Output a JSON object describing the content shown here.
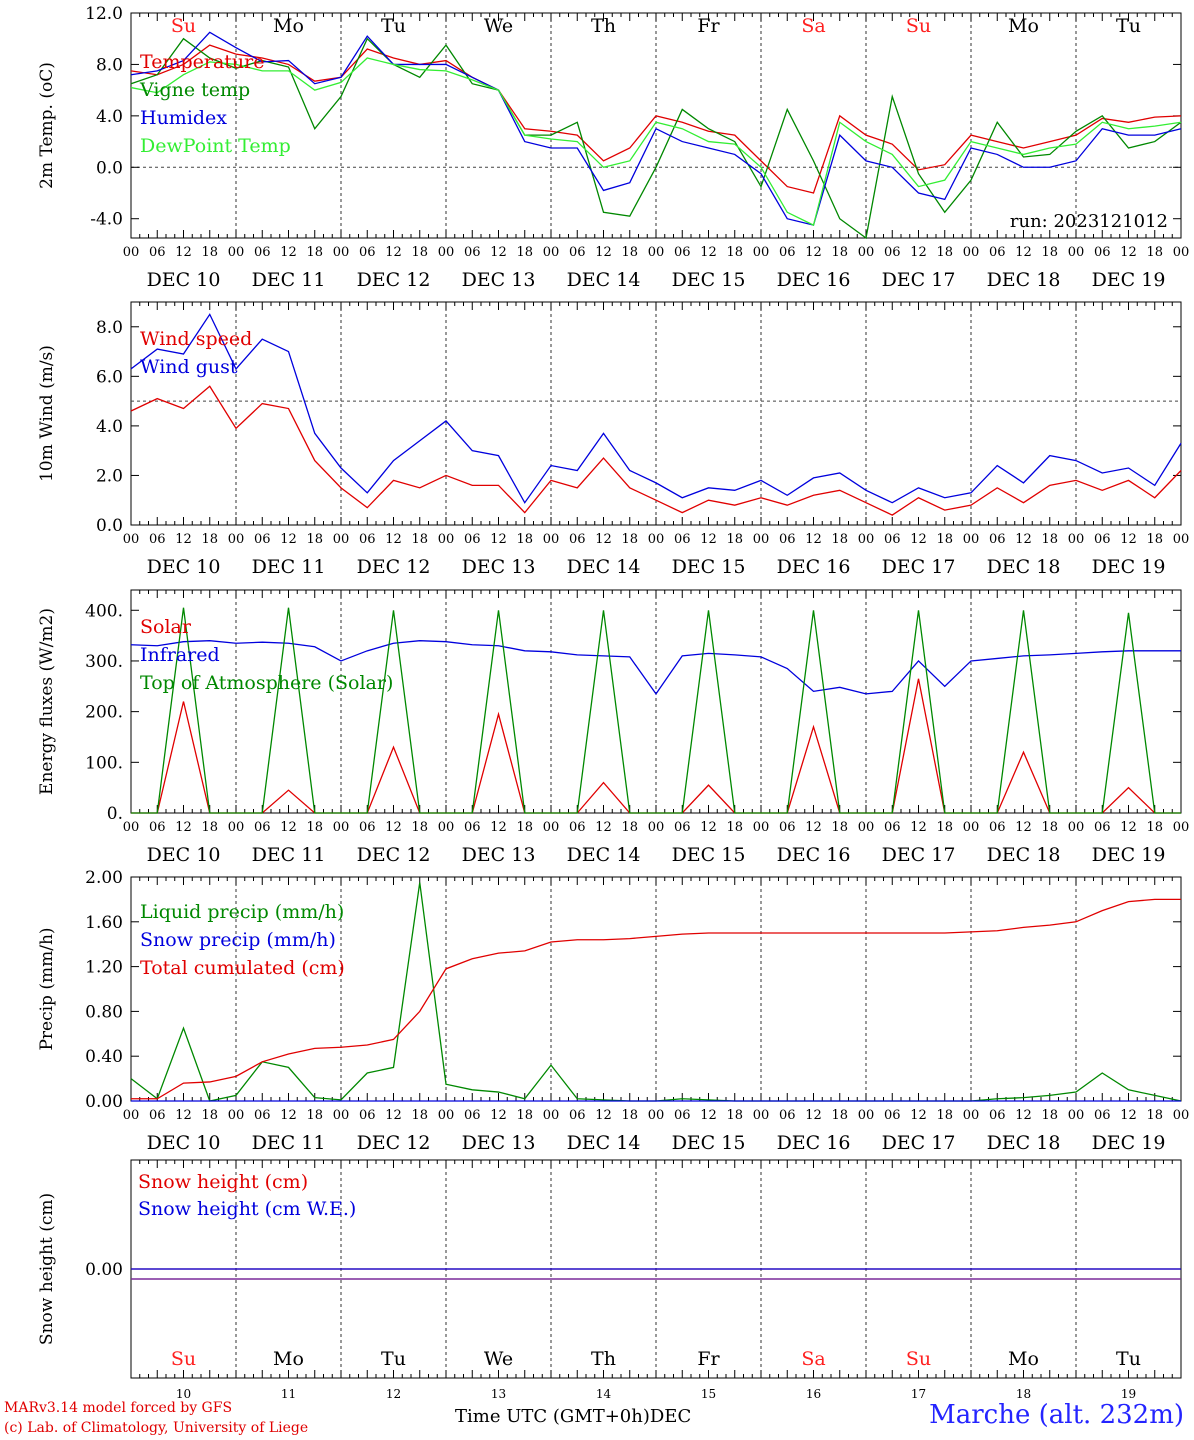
{
  "run_label": "run: 2023121012",
  "day_dates": [
    "DEC 10",
    "DEC 11",
    "DEC 12",
    "DEC 13",
    "DEC 14",
    "DEC 15",
    "DEC 16",
    "DEC 17",
    "DEC 18",
    "DEC 19"
  ],
  "day_names": [
    "Su",
    "Mo",
    "Tu",
    "We",
    "Th",
    "Fr",
    "Sa",
    "Su",
    "Mo",
    "Tu"
  ],
  "day_numbers": [
    "10",
    "11",
    "12",
    "13",
    "14",
    "15",
    "16",
    "17",
    "18",
    "19"
  ],
  "hour_ticks": [
    "00",
    "06",
    "12",
    "18"
  ],
  "weekend_color": "#ff2020",
  "footer": {
    "model": "MARv3.14 model forced by GFS",
    "lab": "(c) Lab. of Climatology, University of Liege",
    "xlabel": "Time UTC (GMT+0h)",
    "month": "DEC",
    "station": "Marche (alt. 232m)"
  },
  "chart_data": [
    {
      "type": "line",
      "ylabel": "2m Temp. (oC)",
      "ylim": [
        -5.5,
        12.0
      ],
      "yticks": [
        "-4.0",
        "0.0",
        "4.0",
        "8.0",
        "12.0"
      ],
      "ytick_values": [
        -4,
        0,
        4,
        8,
        12
      ],
      "ref_line": 0,
      "x_hours": [
        0,
        6,
        12,
        18,
        24,
        30,
        36,
        42,
        48,
        54,
        60,
        66,
        72,
        78,
        84,
        90,
        96,
        102,
        108,
        114,
        120,
        126,
        132,
        138,
        144,
        150,
        156,
        162,
        168,
        174,
        180,
        186,
        192,
        198,
        204,
        210,
        216,
        222,
        228,
        234,
        240
      ],
      "series": [
        {
          "name": "Temperature",
          "color": "#e00000",
          "values": [
            7.5,
            7.2,
            8.0,
            9.5,
            8.8,
            8.5,
            8.0,
            6.7,
            7.0,
            9.2,
            8.5,
            8.0,
            8.3,
            7.0,
            6.0,
            3.0,
            2.8,
            2.5,
            0.5,
            1.5,
            4.0,
            3.5,
            2.8,
            2.5,
            0.5,
            -1.5,
            -2.0,
            4.0,
            2.5,
            1.8,
            -0.2,
            0.2,
            2.5,
            2.0,
            1.5,
            2.0,
            2.5,
            3.8,
            3.5,
            3.9,
            4.0
          ]
        },
        {
          "name": "Vigne temp",
          "color": "#008800",
          "values": [
            6.5,
            7.2,
            10.0,
            8.5,
            7.7,
            8.3,
            7.8,
            3.0,
            5.5,
            10.0,
            8.0,
            7.0,
            9.5,
            6.5,
            6.0,
            2.5,
            2.5,
            3.5,
            -3.5,
            -3.8,
            0.0,
            4.5,
            3.0,
            2.0,
            -1.5,
            4.5,
            0.5,
            -4.0,
            -5.5,
            5.5,
            -0.5,
            -3.5,
            -1.0,
            3.5,
            0.8,
            1.0,
            2.8,
            4.0,
            1.5,
            2.0,
            3.5
          ]
        },
        {
          "name": "Humidex",
          "color": "#0000dd",
          "values": [
            7.2,
            7.5,
            8.3,
            10.5,
            9.3,
            8.2,
            8.3,
            6.5,
            7.0,
            10.2,
            8.0,
            8.0,
            8.0,
            7.0,
            6.0,
            2.0,
            1.5,
            1.5,
            -1.8,
            -1.2,
            3.0,
            2.0,
            1.5,
            1.0,
            -0.5,
            -4.0,
            -4.5,
            2.5,
            0.5,
            0.0,
            -2.0,
            -2.5,
            1.5,
            1.0,
            0.0,
            0.0,
            0.5,
            3.0,
            2.5,
            2.5,
            3.0
          ]
        },
        {
          "name": "DewPoint Temp",
          "color": "#33ee33",
          "values": [
            6.2,
            5.8,
            7.2,
            8.2,
            8.0,
            7.5,
            7.5,
            6.0,
            6.6,
            8.5,
            8.0,
            7.6,
            7.5,
            6.8,
            6.0,
            2.5,
            2.2,
            2.0,
            0.0,
            0.5,
            3.5,
            3.0,
            2.0,
            1.8,
            0.0,
            -3.5,
            -4.5,
            3.5,
            2.0,
            1.0,
            -1.5,
            -1.0,
            2.0,
            1.5,
            1.0,
            1.5,
            1.8,
            3.5,
            3.0,
            3.2,
            3.5
          ]
        }
      ]
    },
    {
      "type": "line",
      "ylabel": "10m Wind (m/s)",
      "ylim": [
        0,
        9.0
      ],
      "yticks": [
        "0.0",
        "2.0",
        "4.0",
        "6.0",
        "8.0"
      ],
      "ytick_values": [
        0,
        2,
        4,
        6,
        8
      ],
      "ref_line": 5,
      "x_hours": [
        0,
        6,
        12,
        18,
        24,
        30,
        36,
        42,
        48,
        54,
        60,
        66,
        72,
        78,
        84,
        90,
        96,
        102,
        108,
        114,
        120,
        126,
        132,
        138,
        144,
        150,
        156,
        162,
        168,
        174,
        180,
        186,
        192,
        198,
        204,
        210,
        216,
        222,
        228,
        234,
        240
      ],
      "series": [
        {
          "name": "Wind speed",
          "color": "#e00000",
          "values": [
            4.6,
            5.1,
            4.7,
            5.6,
            3.9,
            4.9,
            4.7,
            2.6,
            1.5,
            0.7,
            1.8,
            1.5,
            2.0,
            1.6,
            1.6,
            0.5,
            1.8,
            1.5,
            2.7,
            1.5,
            1.0,
            0.5,
            1.0,
            0.8,
            1.1,
            0.8,
            1.2,
            1.4,
            0.9,
            0.4,
            1.1,
            0.6,
            0.8,
            1.5,
            0.9,
            1.6,
            1.8,
            1.4,
            1.8,
            1.1,
            2.2
          ]
        },
        {
          "name": "Wind gust",
          "color": "#0000dd",
          "values": [
            6.3,
            7.1,
            6.9,
            8.5,
            6.3,
            7.5,
            7.0,
            3.7,
            2.3,
            1.3,
            2.6,
            3.4,
            4.2,
            3.0,
            2.8,
            0.9,
            2.4,
            2.2,
            3.7,
            2.2,
            1.7,
            1.1,
            1.5,
            1.4,
            1.8,
            1.2,
            1.9,
            2.1,
            1.4,
            0.9,
            1.5,
            1.1,
            1.3,
            2.4,
            1.7,
            2.8,
            2.6,
            2.1,
            2.3,
            1.6,
            3.3
          ]
        }
      ]
    },
    {
      "type": "line",
      "ylabel": "Energy fluxes (W/m2)",
      "ylim": [
        0,
        440
      ],
      "yticks": [
        "0.",
        "100.",
        "200.",
        "300.",
        "400."
      ],
      "ytick_values": [
        0,
        100,
        200,
        300,
        400
      ],
      "x_hours": [
        0,
        6,
        12,
        18,
        24,
        30,
        36,
        42,
        48,
        54,
        60,
        66,
        72,
        78,
        84,
        90,
        96,
        102,
        108,
        114,
        120,
        126,
        132,
        138,
        144,
        150,
        156,
        162,
        168,
        174,
        180,
        186,
        192,
        198,
        204,
        210,
        216,
        222,
        228,
        234,
        240
      ],
      "series": [
        {
          "name": "Solar",
          "color": "#e00000",
          "values": [
            0,
            0,
            220,
            0,
            0,
            0,
            45,
            0,
            0,
            0,
            130,
            0,
            0,
            0,
            195,
            0,
            0,
            0,
            60,
            0,
            0,
            0,
            55,
            0,
            0,
            0,
            170,
            0,
            0,
            0,
            265,
            0,
            0,
            0,
            120,
            0,
            0,
            0,
            50,
            0,
            0
          ]
        },
        {
          "name": "Infrared",
          "color": "#0000dd",
          "values": [
            332,
            330,
            338,
            340,
            335,
            337,
            335,
            328,
            300,
            320,
            335,
            340,
            338,
            332,
            330,
            320,
            318,
            312,
            310,
            308,
            235,
            310,
            315,
            312,
            308,
            285,
            240,
            248,
            235,
            240,
            300,
            250,
            300,
            305,
            310,
            312,
            315,
            318,
            320,
            320,
            320
          ]
        },
        {
          "name": "Top of Atmosphere (Solar)",
          "color": "#008800",
          "values": [
            0,
            0,
            405,
            0,
            0,
            0,
            405,
            0,
            0,
            0,
            400,
            0,
            0,
            0,
            400,
            0,
            0,
            0,
            400,
            0,
            0,
            0,
            400,
            0,
            0,
            0,
            400,
            0,
            0,
            0,
            400,
            0,
            0,
            0,
            400,
            0,
            0,
            0,
            395,
            0,
            0
          ]
        }
      ]
    },
    {
      "type": "line",
      "ylabel": "Precip (mm/h)",
      "ylim": [
        0,
        2.0
      ],
      "yticks": [
        "0.00",
        "0.40",
        "0.80",
        "1.20",
        "1.60",
        "2.00"
      ],
      "ytick_values": [
        0,
        0.4,
        0.8,
        1.2,
        1.6,
        2.0
      ],
      "x_hours": [
        0,
        6,
        12,
        18,
        24,
        30,
        36,
        42,
        48,
        54,
        60,
        66,
        72,
        78,
        84,
        90,
        96,
        102,
        108,
        114,
        120,
        126,
        132,
        138,
        144,
        150,
        156,
        162,
        168,
        174,
        180,
        186,
        192,
        198,
        204,
        210,
        216,
        222,
        228,
        234,
        240
      ],
      "series": [
        {
          "name": "Liquid precip (mm/h)",
          "color": "#008800",
          "values": [
            0.2,
            0.02,
            0.65,
            0.0,
            0.05,
            0.35,
            0.3,
            0.03,
            0.01,
            0.25,
            0.3,
            1.95,
            0.15,
            0.1,
            0.08,
            0.02,
            0.32,
            0.02,
            0.01,
            0.0,
            0.0,
            0.02,
            0.01,
            0.0,
            0.0,
            0.0,
            0.0,
            0.0,
            0.0,
            0.0,
            0.0,
            0.0,
            0.0,
            0.02,
            0.03,
            0.05,
            0.08,
            0.25,
            0.1,
            0.05,
            0.0
          ]
        },
        {
          "name": "Snow precip (mm/h)",
          "color": "#0000dd",
          "values": [
            0,
            0,
            0,
            0,
            0,
            0,
            0,
            0,
            0,
            0,
            0,
            0,
            0,
            0,
            0,
            0,
            0,
            0,
            0,
            0,
            0,
            0,
            0,
            0,
            0,
            0,
            0,
            0,
            0,
            0,
            0,
            0,
            0,
            0,
            0,
            0,
            0,
            0,
            0,
            0,
            0
          ]
        },
        {
          "name": "Total cumulated (cm)",
          "color": "#e00000",
          "values": [
            0.02,
            0.02,
            0.16,
            0.17,
            0.22,
            0.35,
            0.42,
            0.47,
            0.48,
            0.5,
            0.55,
            0.8,
            1.18,
            1.27,
            1.32,
            1.34,
            1.42,
            1.44,
            1.44,
            1.45,
            1.47,
            1.49,
            1.5,
            1.5,
            1.5,
            1.5,
            1.5,
            1.5,
            1.5,
            1.5,
            1.5,
            1.5,
            1.51,
            1.52,
            1.55,
            1.57,
            1.6,
            1.7,
            1.78,
            1.8,
            1.8
          ]
        }
      ]
    },
    {
      "type": "line",
      "ylabel": "Snow height (cm)",
      "ylim": [
        -1,
        1
      ],
      "yticks": [
        "0.00"
      ],
      "ytick_values": [
        0
      ],
      "x_hours": [
        0,
        240
      ],
      "series": [
        {
          "name": "Snow height (cm)",
          "color": "#e00000",
          "values": [
            0,
            0
          ]
        },
        {
          "name": "Snow height (cm W.E.)",
          "color": "#0000dd",
          "values": [
            0,
            0
          ]
        }
      ]
    }
  ]
}
